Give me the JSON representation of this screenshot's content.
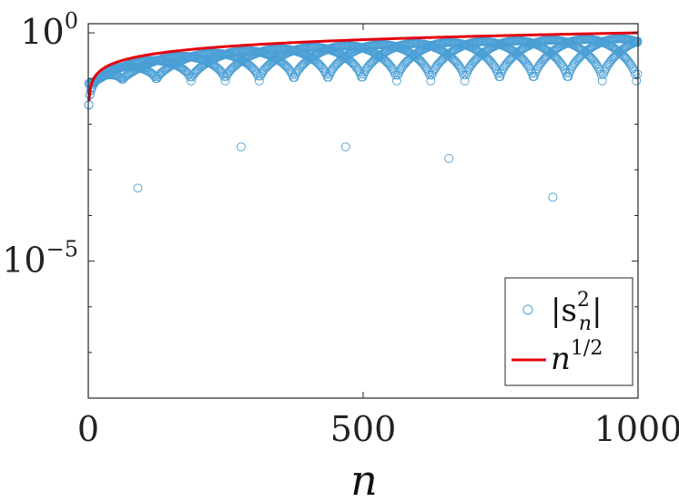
{
  "chart_data": {
    "type": "scatter",
    "title": "",
    "xlabel": "n",
    "ylabel": "",
    "xlim": [
      0,
      1000
    ],
    "ylog": true,
    "ylim_log10": [
      -8.0,
      0.2
    ],
    "grid": false,
    "legend_position": "bottom-right",
    "x_ticks": [
      {
        "value": 0,
        "label": "0"
      },
      {
        "value": 500,
        "label": "500"
      },
      {
        "value": 1000,
        "label": "1000"
      }
    ],
    "y_ticks": [
      {
        "exp": 0,
        "base": "10",
        "power": "0"
      },
      {
        "exp": -5,
        "base": "10",
        "power": "−5"
      }
    ],
    "series": [
      {
        "name": "|s_n^2|",
        "legend_label": "|s",
        "legend_sup": "2",
        "legend_sub": "n",
        "legend_tail": "|",
        "kind": "scatter",
        "marker": "open-circle",
        "color": "#4a9fd5",
        "band_period": 187,
        "band_offsets": [
          0,
          62,
          124
        ],
        "band_floor_log10": -1.05,
        "dips": [
          {
            "x": 90,
            "log10": -3.4
          },
          {
            "x": 278,
            "log10": -2.5
          },
          {
            "x": 468,
            "log10": -2.5
          },
          {
            "x": 656,
            "log10": -2.75
          },
          {
            "x": 845,
            "log10": -3.6
          }
        ]
      },
      {
        "name": "n^(1/2)",
        "legend_label": "n",
        "legend_sup": "1/2",
        "kind": "line",
        "color": "#e3000f",
        "log10_at_1000": 0.0,
        "log10_at_1": -1.5
      }
    ]
  }
}
